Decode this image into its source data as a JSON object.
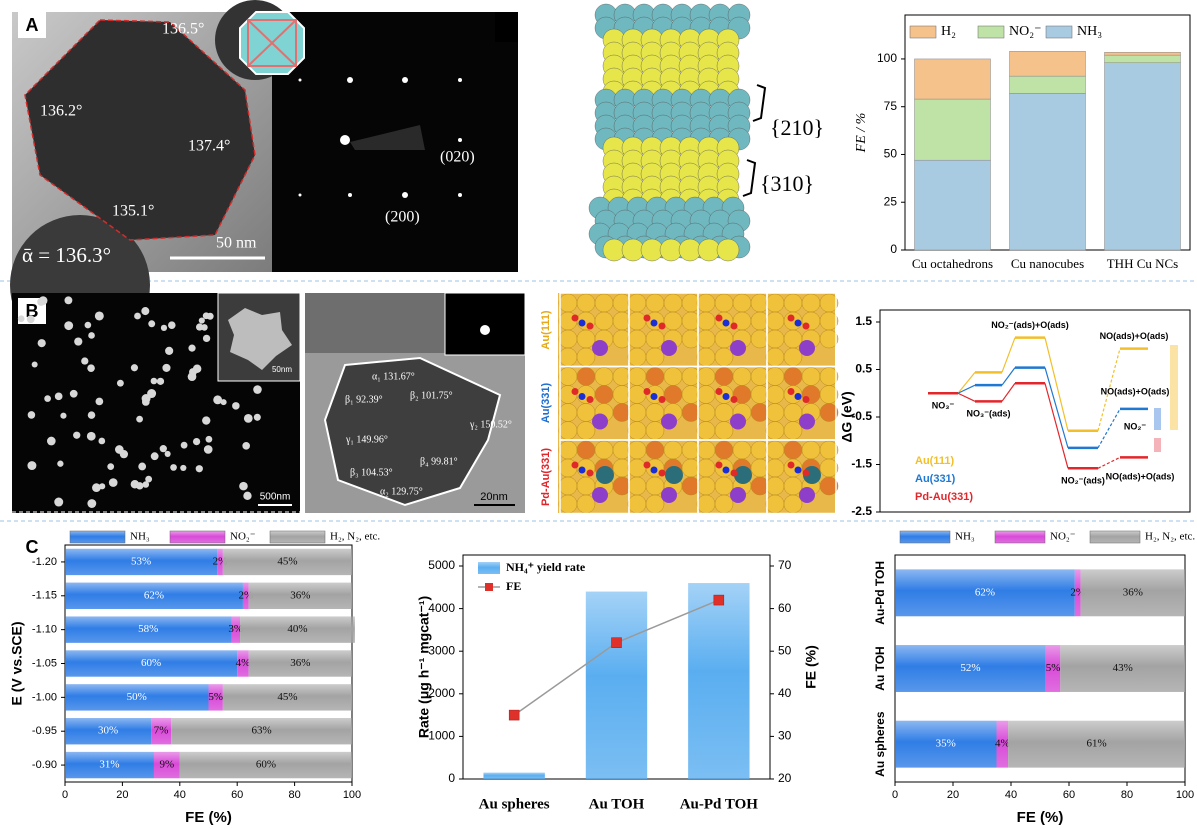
{
  "panel_labels": [
    "A",
    "B",
    "C"
  ],
  "panel_a": {
    "angles": [
      "136.5°",
      "136.2°",
      "137.4°",
      "135.1°"
    ],
    "mean": "ᾱ = 136.3°",
    "scale": "50 nm",
    "spots": [
      "(020)",
      "(200)"
    ],
    "facets": [
      "{210}",
      "{310}"
    ]
  },
  "panel_b": {
    "scales": [
      "50nm",
      "500nm",
      "20nm"
    ],
    "angles": [
      "α₁ 131.67°",
      "β₁ 92.39°",
      "β₂ 101.75°",
      "γ₂ 150.52°",
      "γ₁ 149.96°",
      "β₃ 104.53°",
      "β₄ 99.81°",
      "α₂ 129.75°"
    ],
    "models": [
      "Au(111)",
      "Au(331)",
      "Pd-Au(331)"
    ]
  },
  "chart_data": [
    {
      "type": "bar",
      "stacked": true,
      "ylabel": "FE / %",
      "categories": [
        "Cu octahedrons",
        "Cu nanocubes",
        "THH Cu NCs"
      ],
      "series": [
        {
          "name": "NH₃",
          "color": "#a9cbe2",
          "values": [
            47,
            82,
            98
          ]
        },
        {
          "name": "NO₂⁻",
          "color": "#bfe2a7",
          "values": [
            32,
            9,
            4
          ]
        },
        {
          "name": "H₂",
          "color": "#f6c28b",
          "values": [
            21,
            13,
            1.5
          ]
        }
      ],
      "ylim": [
        0,
        123
      ],
      "yticks": [
        0,
        25,
        50,
        75,
        100
      ]
    },
    {
      "type": "energy",
      "ylabel": "ΔG (eV)",
      "categories": [
        "NO₃⁻",
        "NO₃⁻(ads)",
        "NO₂⁻(ads)+O(ads)",
        "NO₂⁻(ads)",
        "NO(ads)+O(ads)"
      ],
      "series": [
        {
          "name": "Au(111)",
          "color": "#f2bf2a",
          "values": [
            0,
            0.44,
            1.17,
            -0.79,
            0.94
          ]
        },
        {
          "name": "Au(331)",
          "color": "#1f78d1",
          "values": [
            0,
            0.17,
            0.54,
            -1.15,
            -0.33
          ]
        },
        {
          "name": "Pd-Au(331)",
          "color": "#e3262b",
          "values": [
            0,
            -0.17,
            0.21,
            -1.58,
            -1.35
          ]
        }
      ],
      "annotations": [
        "NO(ads)+O(ads)",
        "NO₂⁻",
        "NO(ads)+O(ads)"
      ],
      "ylim": [
        -2.5,
        1.5
      ],
      "yticks": [
        -2.5,
        -1.5,
        -0.5,
        0.5,
        1.5
      ]
    },
    {
      "type": "bar",
      "horizontal": true,
      "stacked": true,
      "xlabel": "FE (%)",
      "ylabel": "E (V vs.SCE)",
      "categories": [
        "-1.20",
        "-1.15",
        "-1.10",
        "-1.05",
        "-1.00",
        "-0.95",
        "-0.90"
      ],
      "series": [
        {
          "name": "NH₃",
          "color": "#2f7de6",
          "values": [
            53,
            62,
            58,
            60,
            50,
            30,
            31
          ],
          "value_labels": [
            "53%",
            "62%",
            "58%",
            "60%",
            "50%",
            "30%",
            "31%"
          ]
        },
        {
          "name": "NO₂⁻",
          "color": "#d84ad8",
          "values": [
            2,
            2,
            3,
            4,
            5,
            7,
            9
          ],
          "value_labels": [
            "2%",
            "2%",
            "3%",
            "4%",
            "5%",
            "7%",
            "9%"
          ]
        },
        {
          "name": "H₂, N₂, etc.",
          "color": "#a3a3a3",
          "values": [
            45,
            36,
            40,
            36,
            45,
            63,
            60
          ],
          "value_labels": [
            "45%",
            "36%",
            "40%",
            "36%",
            "45%",
            "63%",
            "60%"
          ]
        }
      ],
      "xlim": [
        0,
        100
      ],
      "xticks": [
        0,
        20,
        40,
        60,
        80,
        100
      ]
    },
    {
      "type": "bar",
      "ylabel": "Rate (μg h⁻¹ mgcat⁻¹)",
      "y2label": "FE (%)",
      "categories": [
        "Au spheres",
        "Au TOH",
        "Au-Pd TOH"
      ],
      "series": [
        {
          "name": "NH₄⁺ yield rate",
          "color": "#5aaef0",
          "values": [
            150,
            4400,
            4600
          ]
        },
        {
          "name": "FE",
          "color": "#e0302a",
          "type": "line",
          "axis": "y2",
          "values": [
            35,
            52,
            62
          ]
        }
      ],
      "ylim": [
        0,
        5000
      ],
      "yticks": [
        0,
        1000,
        2000,
        3000,
        4000,
        5000
      ],
      "y2lim": [
        20,
        70
      ],
      "y2ticks": [
        20,
        30,
        40,
        50,
        60,
        70
      ]
    },
    {
      "type": "bar",
      "horizontal": true,
      "stacked": true,
      "xlabel": "FE (%)",
      "categories": [
        "Au-Pd TOH",
        "Au TOH",
        "Au spheres"
      ],
      "series": [
        {
          "name": "NH₃",
          "color": "#2f7de6",
          "values": [
            62,
            52,
            35
          ],
          "value_labels": [
            "62%",
            "52%",
            "35%"
          ]
        },
        {
          "name": "NO₂⁻",
          "color": "#d84ad8",
          "values": [
            2,
            5,
            4
          ],
          "value_labels": [
            "2%",
            "5%",
            "4%"
          ]
        },
        {
          "name": "H₂, N₂, etc.",
          "color": "#a3a3a3",
          "values": [
            36,
            43,
            61
          ],
          "value_labels": [
            "36%",
            "43%",
            "61%"
          ]
        }
      ],
      "xlim": [
        0,
        100
      ],
      "xticks": [
        0,
        20,
        40,
        60,
        80,
        100
      ]
    }
  ]
}
